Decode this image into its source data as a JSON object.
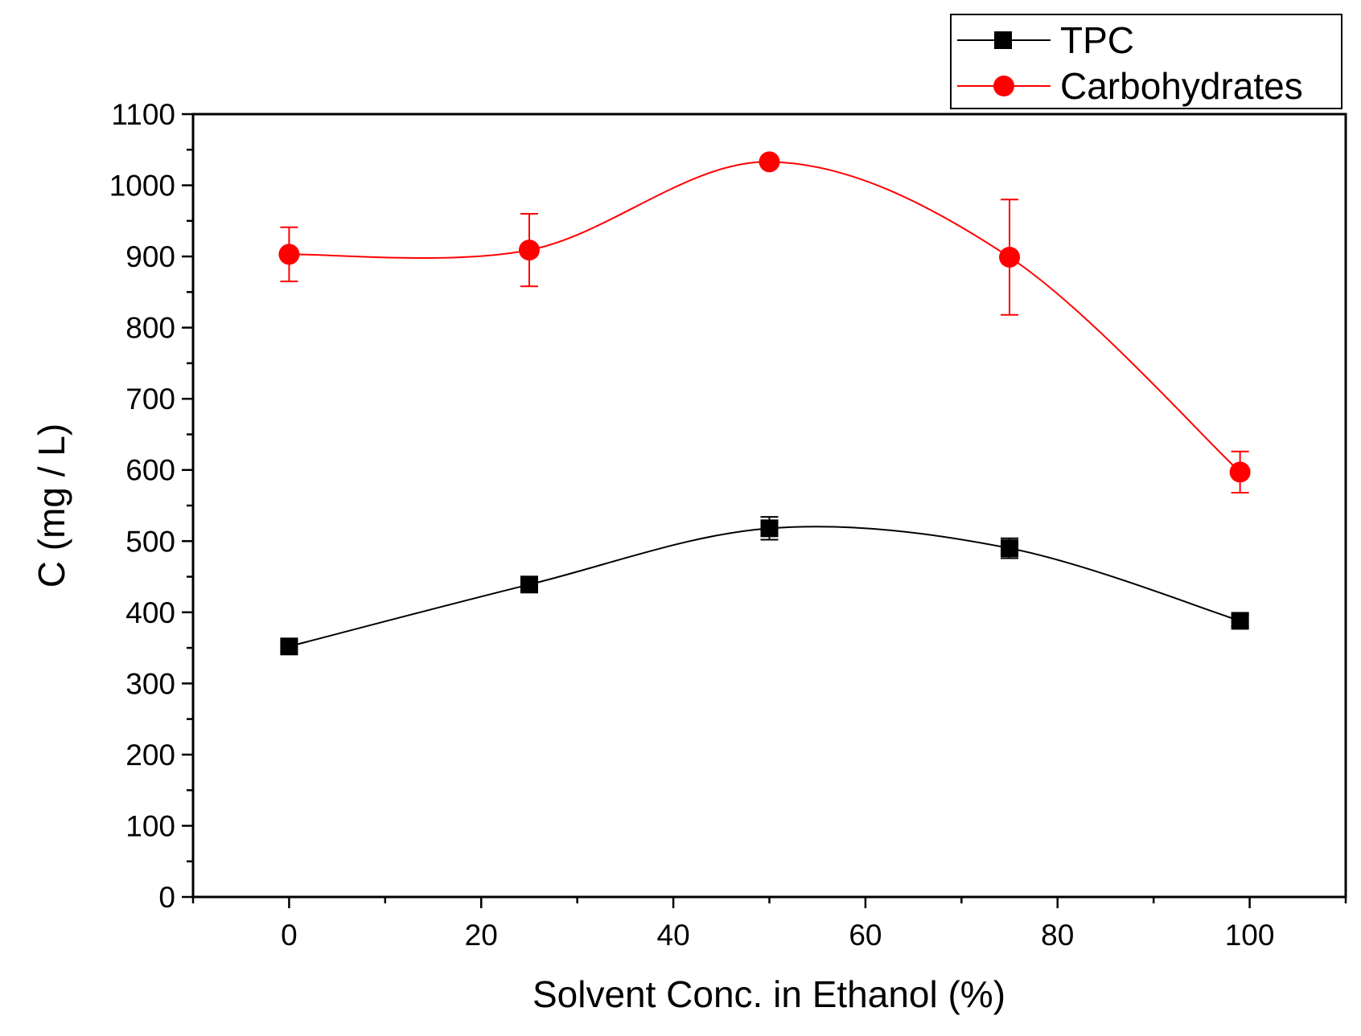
{
  "chart_data": {
    "type": "line",
    "xlabel": "Solvent Conc. in Ethanol (%)",
    "ylabel": "C (mg / L)",
    "xlim": [
      -10,
      110
    ],
    "ylim": [
      0,
      1100
    ],
    "xticks": [
      0,
      20,
      40,
      60,
      80,
      100
    ],
    "yticks": [
      0,
      100,
      200,
      300,
      400,
      500,
      600,
      700,
      800,
      900,
      1000,
      1100
    ],
    "legend_position": "top-right (outside plot)",
    "series": [
      {
        "name": "TPC",
        "color": "#000000",
        "marker": "square",
        "x": [
          0,
          25,
          50,
          75,
          99
        ],
        "y": [
          352,
          439,
          518,
          490,
          388
        ],
        "err": [
          8,
          8,
          16,
          14,
          8
        ]
      },
      {
        "name": "Carbohydrates",
        "color": "#ff0000",
        "marker": "circle",
        "x": [
          0,
          25,
          50,
          75,
          99
        ],
        "y": [
          903,
          909,
          1033,
          899,
          597
        ],
        "err": [
          38,
          51,
          0,
          81,
          29
        ]
      }
    ]
  }
}
